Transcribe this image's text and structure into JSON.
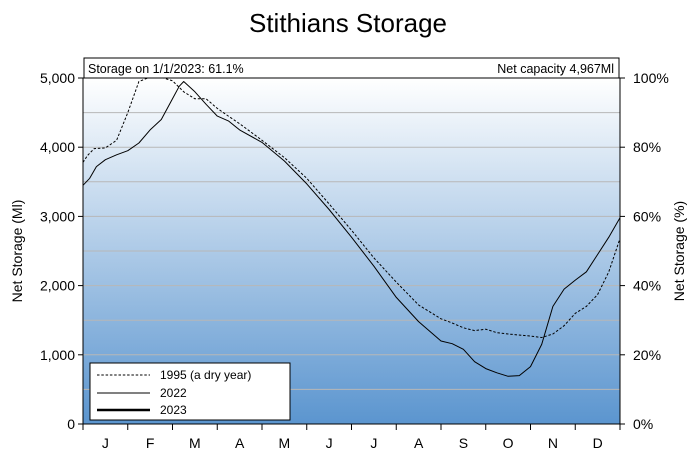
{
  "chart_data": {
    "type": "line",
    "title": "Stithians Storage",
    "ylabel_left": "Net Storage (Ml)",
    "ylabel_right": "Net Storage (%)",
    "ylim_left": [
      0,
      5000
    ],
    "ylim_right": [
      0,
      100
    ],
    "yticks_left": [
      "0",
      "1,000",
      "2,000",
      "3,000",
      "4,000",
      "5,000"
    ],
    "yticks_right": [
      "0%",
      "20%",
      "40%",
      "60%",
      "80%",
      "100%"
    ],
    "months": [
      "J",
      "F",
      "M",
      "A",
      "M",
      "J",
      "J",
      "A",
      "S",
      "O",
      "N",
      "D"
    ],
    "annotation_left": "Storage on 1/1/2023: 61.1%",
    "annotation_right": "Net capacity  4,967Ml",
    "legend_position": "bottom-left",
    "series": [
      {
        "name": "1995 (a dry year)",
        "style": "dashed",
        "points": [
          [
            0,
            3780
          ],
          [
            0.1,
            3880
          ],
          [
            0.25,
            3980
          ],
          [
            0.5,
            3990
          ],
          [
            0.75,
            4100
          ],
          [
            1.0,
            4500
          ],
          [
            1.25,
            4950
          ],
          [
            1.45,
            5000
          ],
          [
            1.8,
            5000
          ],
          [
            2.0,
            4960
          ],
          [
            2.25,
            4800
          ],
          [
            2.5,
            4700
          ],
          [
            2.75,
            4700
          ],
          [
            3.0,
            4560
          ],
          [
            3.25,
            4450
          ],
          [
            3.5,
            4340
          ],
          [
            4.0,
            4100
          ],
          [
            4.5,
            3850
          ],
          [
            5.0,
            3550
          ],
          [
            5.5,
            3180
          ],
          [
            6.0,
            2800
          ],
          [
            6.5,
            2400
          ],
          [
            7.0,
            2050
          ],
          [
            7.5,
            1720
          ],
          [
            8.0,
            1520
          ],
          [
            8.25,
            1460
          ],
          [
            8.5,
            1390
          ],
          [
            8.75,
            1350
          ],
          [
            9.0,
            1370
          ],
          [
            9.25,
            1320
          ],
          [
            9.5,
            1300
          ],
          [
            10.0,
            1270
          ],
          [
            10.25,
            1250
          ],
          [
            10.5,
            1300
          ],
          [
            10.75,
            1420
          ],
          [
            11.0,
            1600
          ],
          [
            11.25,
            1700
          ],
          [
            11.5,
            1870
          ],
          [
            11.75,
            2200
          ],
          [
            12.0,
            2680
          ]
        ]
      },
      {
        "name": "2022",
        "style": "solid",
        "points": [
          [
            0,
            3450
          ],
          [
            0.15,
            3550
          ],
          [
            0.3,
            3720
          ],
          [
            0.5,
            3820
          ],
          [
            0.75,
            3890
          ],
          [
            1.0,
            3950
          ],
          [
            1.25,
            4060
          ],
          [
            1.5,
            4250
          ],
          [
            1.75,
            4400
          ],
          [
            2.0,
            4700
          ],
          [
            2.15,
            4880
          ],
          [
            2.25,
            4950
          ],
          [
            2.5,
            4800
          ],
          [
            2.75,
            4620
          ],
          [
            3.0,
            4450
          ],
          [
            3.25,
            4380
          ],
          [
            3.5,
            4250
          ],
          [
            4.0,
            4070
          ],
          [
            4.5,
            3800
          ],
          [
            5.0,
            3470
          ],
          [
            5.5,
            3100
          ],
          [
            6.0,
            2700
          ],
          [
            6.5,
            2280
          ],
          [
            7.0,
            1830
          ],
          [
            7.5,
            1480
          ],
          [
            8.0,
            1200
          ],
          [
            8.25,
            1160
          ],
          [
            8.5,
            1080
          ],
          [
            8.75,
            900
          ],
          [
            9.0,
            800
          ],
          [
            9.25,
            740
          ],
          [
            9.5,
            690
          ],
          [
            9.75,
            700
          ],
          [
            10.0,
            830
          ],
          [
            10.25,
            1150
          ],
          [
            10.5,
            1700
          ],
          [
            10.75,
            1950
          ],
          [
            11.0,
            2080
          ],
          [
            11.25,
            2200
          ],
          [
            11.5,
            2450
          ],
          [
            11.75,
            2700
          ],
          [
            12.0,
            2980
          ]
        ]
      },
      {
        "name": "2023",
        "style": "thick",
        "points": []
      }
    ]
  }
}
